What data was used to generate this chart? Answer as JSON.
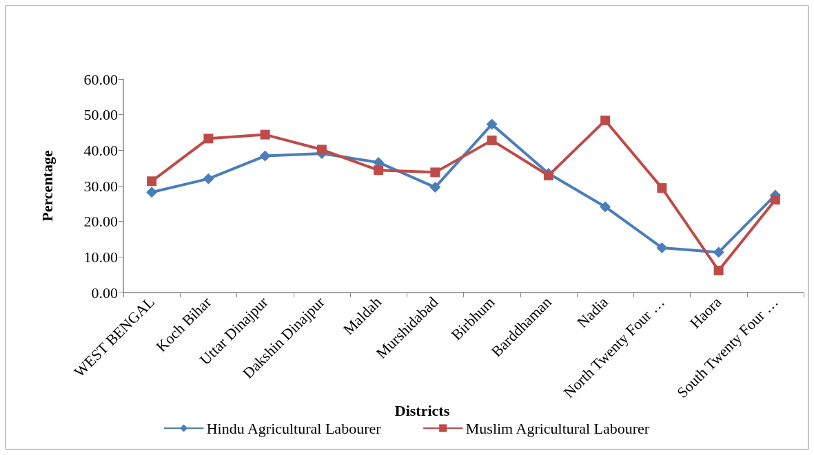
{
  "chart_data": {
    "type": "line",
    "xlabel": "Districts",
    "ylabel": "Percentage",
    "categories": [
      "WEST BENGAL",
      "Koch Bihar",
      "Uttar Dinajpur",
      "Dakshin Dinajpur",
      "Maldah",
      "Murshidabad",
      "Birbhum",
      "Barddhaman",
      "Nadia",
      "North Twenty Four …",
      "Haora",
      "South Twenty Four …"
    ],
    "series": [
      {
        "name": "Hindu Agricultural Labourer",
        "color": "#4a7ebb",
        "marker": "diamond",
        "values": [
          28.2,
          32.0,
          38.4,
          39.1,
          36.6,
          29.6,
          47.3,
          33.5,
          24.1,
          12.6,
          11.3,
          27.4
        ]
      },
      {
        "name": "Muslim Agricultural Labourer",
        "color": "#be4b48",
        "marker": "square",
        "values": [
          31.3,
          43.3,
          44.4,
          40.2,
          34.4,
          33.8,
          42.8,
          32.9,
          48.4,
          29.4,
          6.2,
          26.1
        ]
      }
    ],
    "ylim": [
      0,
      60
    ],
    "yticks": [
      {
        "value": 0,
        "label": "0.00"
      },
      {
        "value": 10,
        "label": "10.00"
      },
      {
        "value": 20,
        "label": "20.00"
      },
      {
        "value": 30,
        "label": "30.00"
      },
      {
        "value": 40,
        "label": "40.00"
      },
      {
        "value": 50,
        "label": "50.00"
      },
      {
        "value": 60,
        "label": "60.00"
      }
    ],
    "grid": false,
    "legend": "bottom"
  }
}
